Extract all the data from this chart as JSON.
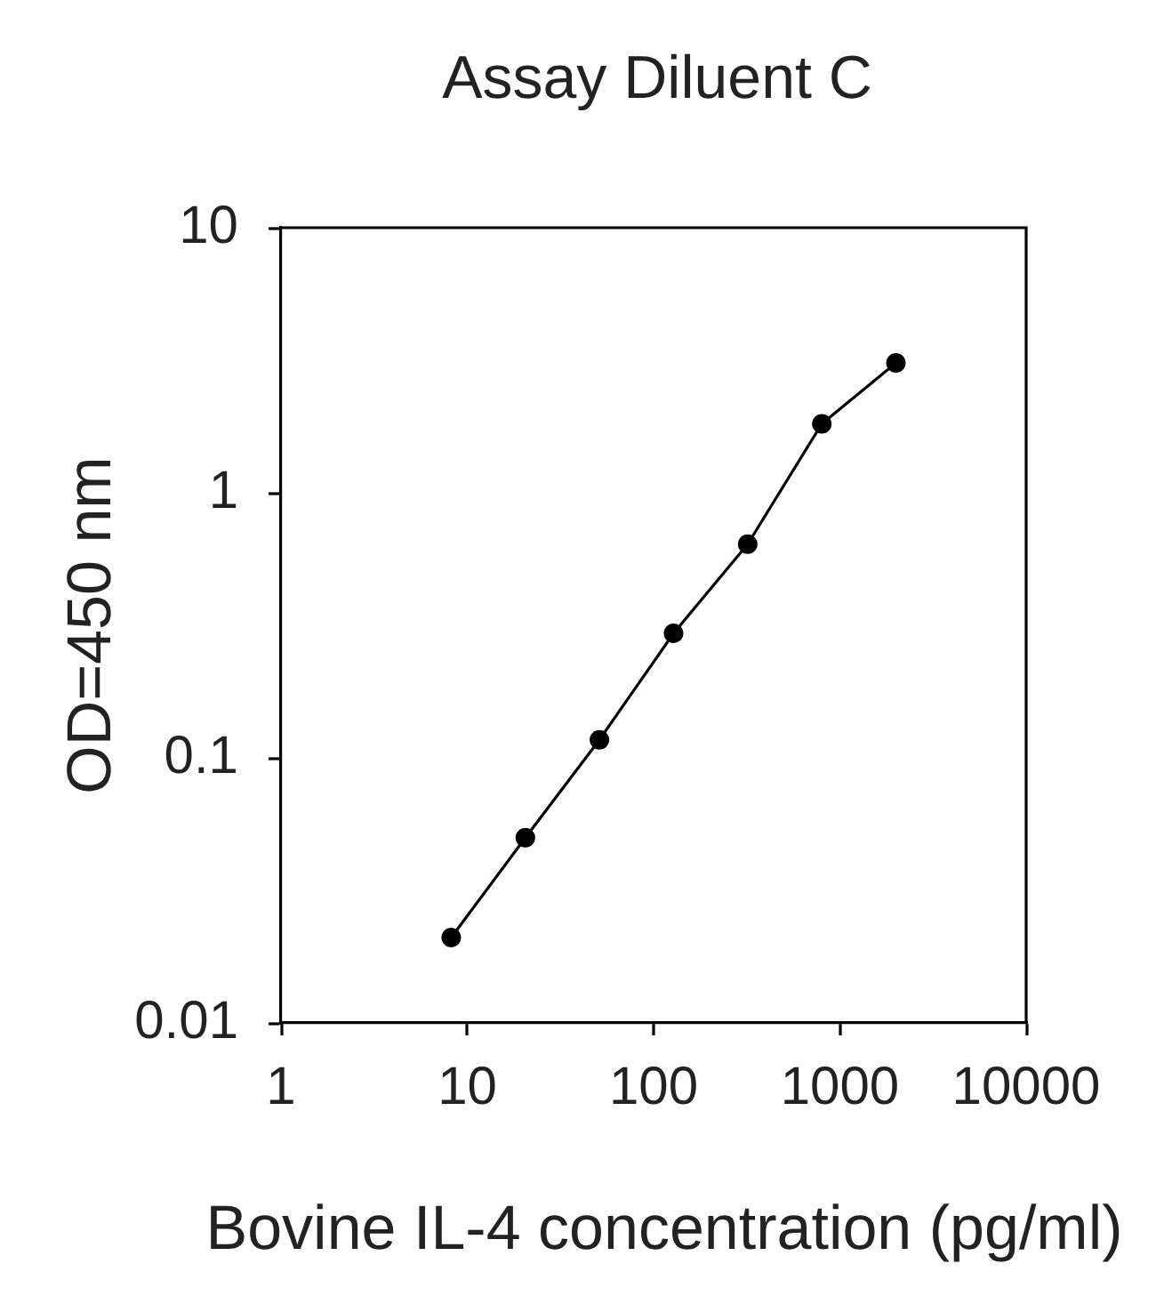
{
  "chart_data": {
    "type": "line",
    "title": "Assay Diluent C",
    "xlabel": "Bovine IL-4 concentration (pg/ml)",
    "ylabel": "OD=450 nm",
    "x": [
      8.2,
      20.5,
      51.2,
      128,
      320,
      800,
      2000
    ],
    "series": [
      {
        "color": "#000000",
        "values": [
          0.021,
          0.05,
          0.117,
          0.295,
          0.64,
          1.82,
          3.09
        ]
      }
    ],
    "log": "xy",
    "xlim": [
      1,
      10000
    ],
    "ylim": [
      0.01,
      10
    ],
    "xticks": [
      1,
      10,
      100,
      1000,
      10000
    ],
    "yticks": [
      0.01,
      0.1,
      1,
      10
    ],
    "grid": false,
    "legend": false,
    "marker": "circle",
    "line_style": "solid"
  }
}
